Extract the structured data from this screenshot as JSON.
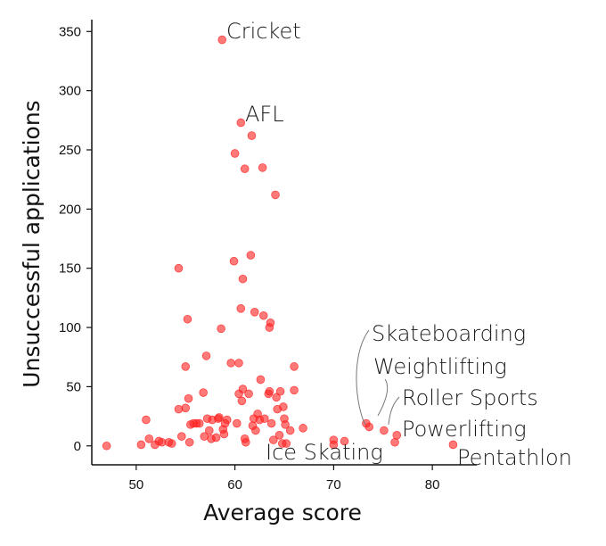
{
  "chart_data": {
    "type": "scatter",
    "title": "",
    "xlabel": "Average score",
    "ylabel": "Unsuccessful applications",
    "xlim": [
      45.5,
      84.5
    ],
    "ylim": [
      -16,
      360
    ],
    "xticks": [
      50,
      60,
      70,
      80
    ],
    "yticks": [
      0,
      50,
      100,
      150,
      200,
      250,
      300,
      350
    ],
    "grid": false,
    "point_color": "#ff2020",
    "points": [
      [
        47.0,
        0
      ],
      [
        50.5,
        1
      ],
      [
        51.0,
        22
      ],
      [
        51.3,
        6
      ],
      [
        51.9,
        1
      ],
      [
        52.3,
        4
      ],
      [
        52.6,
        3
      ],
      [
        53.3,
        3
      ],
      [
        53.6,
        2
      ],
      [
        54.3,
        150
      ],
      [
        54.3,
        31
      ],
      [
        54.6,
        8
      ],
      [
        55.0,
        67
      ],
      [
        55.0,
        32
      ],
      [
        55.2,
        107
      ],
      [
        55.3,
        40
      ],
      [
        55.4,
        3
      ],
      [
        55.5,
        18
      ],
      [
        55.8,
        19
      ],
      [
        56.1,
        19
      ],
      [
        56.4,
        19
      ],
      [
        56.8,
        45
      ],
      [
        56.9,
        8
      ],
      [
        57.1,
        76
      ],
      [
        57.2,
        23
      ],
      [
        57.4,
        13
      ],
      [
        57.6,
        6
      ],
      [
        57.7,
        22
      ],
      [
        58.1,
        7
      ],
      [
        58.3,
        23
      ],
      [
        58.4,
        24
      ],
      [
        58.6,
        99
      ],
      [
        58.7,
        343
      ],
      [
        58.8,
        14
      ],
      [
        58.9,
        10
      ],
      [
        59.0,
        19
      ],
      [
        59.2,
        22
      ],
      [
        59.6,
        70
      ],
      [
        59.9,
        156
      ],
      [
        60.0,
        247
      ],
      [
        60.2,
        19
      ],
      [
        60.4,
        70
      ],
      [
        60.4,
        44
      ],
      [
        60.6,
        273
      ],
      [
        60.6,
        116
      ],
      [
        60.7,
        38
      ],
      [
        60.8,
        141
      ],
      [
        60.8,
        48
      ],
      [
        61.0,
        234
      ],
      [
        61.0,
        6
      ],
      [
        61.1,
        3
      ],
      [
        61.4,
        44
      ],
      [
        61.6,
        161
      ],
      [
        61.7,
        262
      ],
      [
        61.8,
        17
      ],
      [
        61.9,
        23
      ],
      [
        62.0,
        113
      ],
      [
        62.1,
        13
      ],
      [
        62.3,
        27
      ],
      [
        62.5,
        22
      ],
      [
        62.6,
        56
      ],
      [
        62.8,
        235
      ],
      [
        62.9,
        110
      ],
      [
        63.0,
        23
      ],
      [
        63.4,
        44
      ],
      [
        63.5,
        46
      ],
      [
        63.5,
        100
      ],
      [
        63.6,
        104
      ],
      [
        63.7,
        19
      ],
      [
        63.9,
        5
      ],
      [
        64.1,
        212
      ],
      [
        64.2,
        41
      ],
      [
        64.3,
        31
      ],
      [
        64.5,
        9
      ],
      [
        64.6,
        46
      ],
      [
        64.8,
        2
      ],
      [
        64.9,
        33
      ],
      [
        65.0,
        23
      ],
      [
        65.1,
        18
      ],
      [
        65.2,
        2
      ],
      [
        65.6,
        13
      ],
      [
        66.0,
        67
      ],
      [
        66.0,
        47
      ],
      [
        66.9,
        15
      ],
      [
        70.0,
        5
      ],
      [
        70.0,
        1
      ],
      [
        71.1,
        4
      ],
      [
        73.3,
        19
      ],
      [
        73.6,
        16
      ],
      [
        75.1,
        13
      ],
      [
        76.2,
        3
      ],
      [
        76.4,
        9
      ],
      [
        82.1,
        1
      ]
    ],
    "annotations": [
      {
        "label": "Cricket",
        "x": 58.7,
        "y": 343
      },
      {
        "label": "AFL",
        "x": 60.6,
        "y": 273
      },
      {
        "label": "Skateboarding",
        "x": 73.3,
        "y": 19
      },
      {
        "label": "Weightlifting",
        "x": 73.6,
        "y": 16
      },
      {
        "label": "Roller Sports",
        "x": 75.1,
        "y": 13
      },
      {
        "label": "Powerlifting",
        "x": 76.4,
        "y": 9
      },
      {
        "label": "Ice Skating",
        "x": 70.0,
        "y": 1
      },
      {
        "label": "Pentathlon",
        "x": 82.1,
        "y": 1
      }
    ]
  }
}
